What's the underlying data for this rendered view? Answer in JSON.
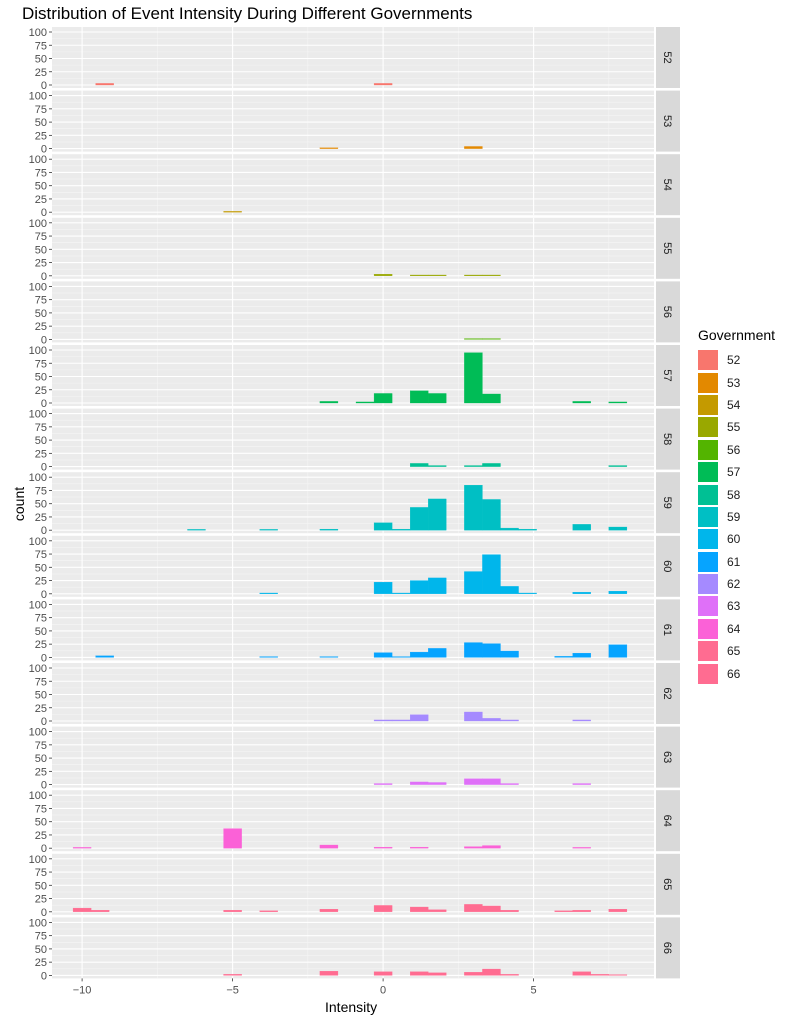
{
  "chart_data": {
    "type": "bar",
    "title": "Distribution of Event Intensity During Different Governments",
    "xlabel": "Intensity",
    "ylabel": "count",
    "legend_title": "Government",
    "legend_position": "right",
    "grid": true,
    "xlim": [
      -11,
      9
    ],
    "ylim": [
      0,
      100
    ],
    "x_ticks": [
      -10,
      -5,
      0,
      5
    ],
    "x_tick_labels": [
      "−10",
      "−5",
      "0",
      "5"
    ],
    "y_ticks": [
      0,
      25,
      50,
      75,
      100
    ],
    "bin_width": 0.6,
    "series": [
      {
        "name": "52",
        "color": "#F8766D",
        "bins": [
          {
            "x": -9.25,
            "count": 3
          },
          {
            "x": 0,
            "count": 3
          }
        ]
      },
      {
        "name": "53",
        "color": "#E38900",
        "bins": [
          {
            "x": -1.8,
            "count": 1
          },
          {
            "x": 3,
            "count": 4
          }
        ]
      },
      {
        "name": "54",
        "color": "#C49A00",
        "bins": [
          {
            "x": -5,
            "count": 1
          }
        ]
      },
      {
        "name": "55",
        "color": "#99A800",
        "bins": [
          {
            "x": 0,
            "count": 3
          },
          {
            "x": 1.2,
            "count": 1
          },
          {
            "x": 1.8,
            "count": 1
          },
          {
            "x": 3,
            "count": 1
          },
          {
            "x": 3.6,
            "count": 1
          }
        ]
      },
      {
        "name": "56",
        "color": "#53B400",
        "bins": [
          {
            "x": 3,
            "count": 1
          },
          {
            "x": 3.6,
            "count": 1
          }
        ]
      },
      {
        "name": "57",
        "color": "#00BC56",
        "bins": [
          {
            "x": -1.8,
            "count": 3
          },
          {
            "x": -0.6,
            "count": 2
          },
          {
            "x": 0,
            "count": 18
          },
          {
            "x": 1.2,
            "count": 23
          },
          {
            "x": 1.8,
            "count": 18
          },
          {
            "x": 3,
            "count": 95
          },
          {
            "x": 3.6,
            "count": 17
          },
          {
            "x": 6.6,
            "count": 3
          },
          {
            "x": 7.8,
            "count": 2
          }
        ]
      },
      {
        "name": "58",
        "color": "#00C094",
        "bins": [
          {
            "x": 1.2,
            "count": 6
          },
          {
            "x": 1.8,
            "count": 2
          },
          {
            "x": 3,
            "count": 2
          },
          {
            "x": 3.6,
            "count": 6
          },
          {
            "x": 7.8,
            "count": 2
          }
        ]
      },
      {
        "name": "59",
        "color": "#00BFC4",
        "bins": [
          {
            "x": -6.2,
            "count": 1
          },
          {
            "x": -3.8,
            "count": 1
          },
          {
            "x": -1.8,
            "count": 2
          },
          {
            "x": 0,
            "count": 14
          },
          {
            "x": 0.6,
            "count": 2
          },
          {
            "x": 1.2,
            "count": 43
          },
          {
            "x": 1.8,
            "count": 59
          },
          {
            "x": 3,
            "count": 85
          },
          {
            "x": 3.6,
            "count": 58
          },
          {
            "x": 4.2,
            "count": 4
          },
          {
            "x": 4.8,
            "count": 2
          },
          {
            "x": 6.6,
            "count": 11
          },
          {
            "x": 7.8,
            "count": 6
          }
        ]
      },
      {
        "name": "60",
        "color": "#00B6EB",
        "bins": [
          {
            "x": -3.8,
            "count": 1
          },
          {
            "x": 0,
            "count": 22
          },
          {
            "x": 0.6,
            "count": 1
          },
          {
            "x": 1.2,
            "count": 25
          },
          {
            "x": 1.8,
            "count": 30
          },
          {
            "x": 3,
            "count": 42
          },
          {
            "x": 3.6,
            "count": 74
          },
          {
            "x": 4.2,
            "count": 14
          },
          {
            "x": 4.8,
            "count": 1
          },
          {
            "x": 6.6,
            "count": 3
          },
          {
            "x": 7.8,
            "count": 5
          }
        ]
      },
      {
        "name": "61",
        "color": "#06A4FF",
        "bins": [
          {
            "x": -9.25,
            "count": 3
          },
          {
            "x": -3.8,
            "count": 1
          },
          {
            "x": -1.8,
            "count": 1
          },
          {
            "x": 0,
            "count": 9
          },
          {
            "x": 0.6,
            "count": 1
          },
          {
            "x": 1.2,
            "count": 10
          },
          {
            "x": 1.8,
            "count": 17
          },
          {
            "x": 3,
            "count": 28
          },
          {
            "x": 3.6,
            "count": 26
          },
          {
            "x": 4.2,
            "count": 12
          },
          {
            "x": 6,
            "count": 2
          },
          {
            "x": 6.6,
            "count": 8
          },
          {
            "x": 7.8,
            "count": 24
          }
        ]
      },
      {
        "name": "62",
        "color": "#A58AFF",
        "bins": [
          {
            "x": 0,
            "count": 2
          },
          {
            "x": 0.6,
            "count": 2
          },
          {
            "x": 1.2,
            "count": 12
          },
          {
            "x": 3,
            "count": 17
          },
          {
            "x": 3.6,
            "count": 5
          },
          {
            "x": 4.2,
            "count": 2
          },
          {
            "x": 6.6,
            "count": 2
          }
        ]
      },
      {
        "name": "63",
        "color": "#DF70F8",
        "bins": [
          {
            "x": 0,
            "count": 2
          },
          {
            "x": 1.2,
            "count": 5
          },
          {
            "x": 1.8,
            "count": 4
          },
          {
            "x": 3,
            "count": 11
          },
          {
            "x": 3.6,
            "count": 11
          },
          {
            "x": 4.2,
            "count": 2
          },
          {
            "x": 6.6,
            "count": 2
          }
        ]
      },
      {
        "name": "64",
        "color": "#FB61D7",
        "bins": [
          {
            "x": -10,
            "count": 1
          },
          {
            "x": -5,
            "count": 37
          },
          {
            "x": -1.8,
            "count": 6
          },
          {
            "x": 0,
            "count": 2
          },
          {
            "x": 1.2,
            "count": 2
          },
          {
            "x": 3,
            "count": 3
          },
          {
            "x": 3.6,
            "count": 5
          },
          {
            "x": 6.6,
            "count": 1
          }
        ]
      },
      {
        "name": "65",
        "color": "#FF6C91",
        "bins": [
          {
            "x": -10,
            "count": 7
          },
          {
            "x": -9.4,
            "count": 3
          },
          {
            "x": -5,
            "count": 3
          },
          {
            "x": -3.8,
            "count": 2
          },
          {
            "x": -1.8,
            "count": 5
          },
          {
            "x": 0,
            "count": 12
          },
          {
            "x": 1.2,
            "count": 9
          },
          {
            "x": 1.8,
            "count": 4
          },
          {
            "x": 3,
            "count": 14
          },
          {
            "x": 3.6,
            "count": 11
          },
          {
            "x": 4.2,
            "count": 3
          },
          {
            "x": 6,
            "count": 2
          },
          {
            "x": 6.6,
            "count": 3
          },
          {
            "x": 7.8,
            "count": 5
          }
        ]
      },
      {
        "name": "66",
        "color": "#FF6C91",
        "bins": [
          {
            "x": -5,
            "count": 2
          },
          {
            "x": -1.8,
            "count": 8
          },
          {
            "x": 0,
            "count": 7
          },
          {
            "x": 1.2,
            "count": 7
          },
          {
            "x": 1.8,
            "count": 5
          },
          {
            "x": 3,
            "count": 6
          },
          {
            "x": 3.6,
            "count": 12
          },
          {
            "x": 4.2,
            "count": 2
          },
          {
            "x": 6.6,
            "count": 7
          },
          {
            "x": 7.2,
            "count": 2
          },
          {
            "x": 7.8,
            "count": 1
          }
        ]
      }
    ]
  }
}
